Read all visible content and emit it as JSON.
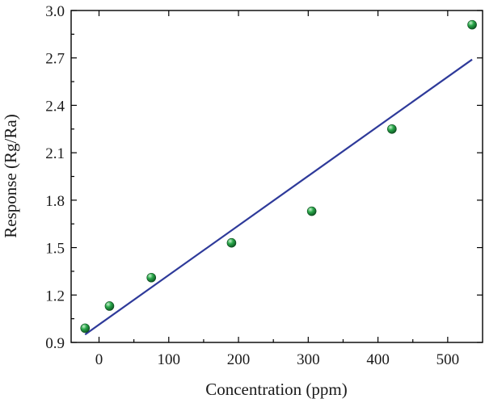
{
  "chart_data": {
    "type": "scatter",
    "title": "",
    "xlabel": "Concentration (ppm)",
    "ylabel": "Response (Rg/Ra)",
    "xlim": [
      -40,
      550
    ],
    "ylim": [
      0.9,
      3.0
    ],
    "xticks": [
      0,
      100,
      200,
      300,
      400,
      500
    ],
    "yticks": [
      0.9,
      1.2,
      1.5,
      1.8,
      2.1,
      2.4,
      2.7,
      3.0
    ],
    "xtick_labels": [
      "0",
      "100",
      "200",
      "300",
      "400",
      "500"
    ],
    "ytick_labels": [
      "0.9",
      "1.2",
      "1.5",
      "1.8",
      "2.1",
      "2.4",
      "2.7",
      "3.0"
    ],
    "grid": false,
    "legend": "none",
    "series": [
      {
        "kind": "scatter",
        "color": "#2aa84a",
        "x": [
          -20,
          15,
          75,
          190,
          305,
          420,
          535
        ],
        "y": [
          0.99,
          1.13,
          1.31,
          1.53,
          1.73,
          2.25,
          2.91
        ]
      },
      {
        "kind": "line",
        "color": "#2e3a9a",
        "x": [
          -20,
          535
        ],
        "y": [
          0.95,
          2.69
        ]
      }
    ]
  }
}
